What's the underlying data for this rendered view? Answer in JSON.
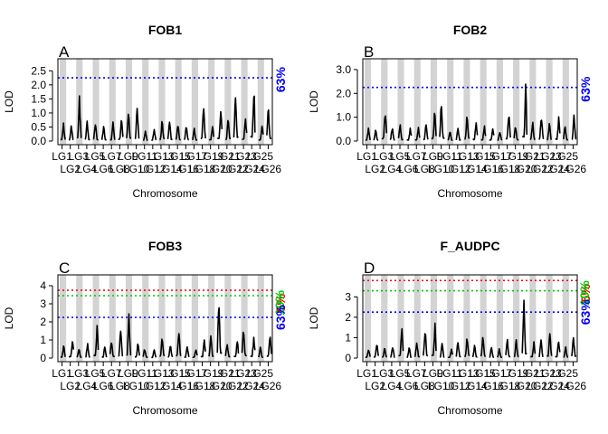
{
  "chart_data": [
    {
      "type": "line",
      "panel_letter": "A",
      "title": "FOB1",
      "xlabel": "Chromosome",
      "ylabel": "LOD",
      "ylim": [
        0,
        2.8
      ],
      "yticks": [
        "0.0",
        "0.5",
        "1.0",
        "1.5",
        "2.0",
        "2.5"
      ],
      "ytick_values": [
        0,
        0.5,
        1,
        1.5,
        2,
        2.5
      ],
      "chromosome_labels_row1": [
        "LG1",
        "LG3",
        "LG5",
        "LG7",
        "LG9",
        "LG11",
        "LG13",
        "LG15",
        "LG17",
        "LG19",
        "LG21",
        "LG23",
        "LG25"
      ],
      "chromosome_labels_row2": [
        "LG2",
        "LG4",
        "LG6",
        "LG8",
        "LG10",
        "LG12",
        "LG14",
        "LG16",
        "LG18",
        "LG20",
        "LG22",
        "LG24",
        "LG26"
      ],
      "thresholds": [
        {
          "label": "63%",
          "value": 2.25,
          "color": "#0000ee"
        }
      ],
      "peaks": [
        0.7,
        0.6,
        1.65,
        0.8,
        0.75,
        0.6,
        0.7,
        0.9,
        1.35,
        1.5,
        0.4,
        0.5,
        0.8,
        0.9,
        0.7,
        0.6,
        0.5,
        1.4,
        0.6,
        1.3,
        0.9,
        1.9,
        1.0,
        2.15,
        0.6,
        1.35
      ]
    },
    {
      "type": "line",
      "panel_letter": "B",
      "title": "FOB2",
      "xlabel": "Chromosome",
      "ylabel": "LOD",
      "ylim": [
        0,
        3.3
      ],
      "yticks": [
        "0.0",
        "1.0",
        "2.0",
        "3.0"
      ],
      "ytick_values": [
        0,
        1,
        2,
        3
      ],
      "chromosome_labels_row1": [
        "LG1",
        "LG3",
        "LG5",
        "LG7",
        "LG9",
        "LG11",
        "LG13",
        "LG15",
        "LG17",
        "LG19",
        "LG21",
        "LG23",
        "LG25"
      ],
      "chromosome_labels_row2": [
        "LG2",
        "LG4",
        "LG6",
        "LG8",
        "LG10",
        "LG12",
        "LG14",
        "LG16",
        "LG18",
        "LG20",
        "LG22",
        "LG24",
        "LG26"
      ],
      "thresholds": [
        {
          "label": "63%",
          "value": 2.25,
          "color": "#0000ee"
        }
      ],
      "peaks": [
        0.6,
        0.5,
        1.55,
        0.7,
        0.8,
        0.6,
        0.65,
        0.9,
        1.4,
        1.85,
        0.5,
        0.6,
        1.2,
        0.9,
        0.7,
        0.6,
        0.5,
        1.4,
        0.8,
        2.7,
        0.9,
        1.3,
        0.9,
        1.1,
        0.7,
        1.25
      ]
    },
    {
      "type": "line",
      "panel_letter": "C",
      "title": "FOB3",
      "xlabel": "Chromosome",
      "ylabel": "LOD",
      "ylim": [
        0,
        4.4
      ],
      "yticks": [
        "0",
        "1",
        "2",
        "3",
        "4"
      ],
      "ytick_values": [
        0,
        1,
        2,
        3,
        4
      ],
      "chromosome_labels_row1": [
        "LG1",
        "LG3",
        "LG5",
        "LG7",
        "LG9",
        "LG11",
        "LG13",
        "LG15",
        "LG17",
        "LG19",
        "LG21",
        "LG23",
        "LG25"
      ],
      "chromosome_labels_row2": [
        "LG2",
        "LG4",
        "LG6",
        "LG8",
        "LG10",
        "LG12",
        "LG14",
        "LG16",
        "LG18",
        "LG20",
        "LG22",
        "LG24",
        "LG26"
      ],
      "thresholds": [
        {
          "label": "5%",
          "value": 3.75,
          "color": "#ee0000"
        },
        {
          "label": "10%",
          "value": 3.45,
          "color": "#00cc00"
        },
        {
          "label": "63%",
          "value": 2.25,
          "color": "#0000ee"
        }
      ],
      "peaks": [
        0.8,
        1.1,
        0.6,
        0.9,
        2.0,
        0.7,
        1.1,
        1.9,
        2.6,
        0.9,
        0.6,
        0.5,
        1.3,
        0.8,
        1.8,
        0.7,
        0.6,
        1.2,
        1.5,
        3.7,
        1.0,
        1.2,
        1.9,
        1.3,
        0.7,
        1.5
      ]
    },
    {
      "type": "line",
      "panel_letter": "D",
      "title": "F_AUDPC",
      "xlabel": "Chromosome",
      "ylabel": "LOD",
      "ylim": [
        0,
        3.9
      ],
      "yticks": [
        "0",
        "1",
        "2",
        "3"
      ],
      "ytick_values": [
        0,
        1,
        2,
        3
      ],
      "chromosome_labels_row1": [
        "LG1",
        "LG3",
        "LG5",
        "LG7",
        "LG9",
        "LG11",
        "LG13",
        "LG15",
        "LG17",
        "LG19",
        "LG21",
        "LG23",
        "LG25"
      ],
      "chromosome_labels_row2": [
        "LG2",
        "LG4",
        "LG6",
        "LG8",
        "LG10",
        "LG12",
        "LG14",
        "LG16",
        "LG18",
        "LG20",
        "LG22",
        "LG24",
        "LG26"
      ],
      "thresholds": [
        {
          "label": "5%",
          "value": 3.8,
          "color": "#ee0000"
        },
        {
          "label": "10%",
          "value": 3.3,
          "color": "#00cc00"
        },
        {
          "label": "63%",
          "value": 2.25,
          "color": "#0000ee"
        }
      ],
      "peaks": [
        0.5,
        0.8,
        0.6,
        0.7,
        1.8,
        0.6,
        0.9,
        1.6,
        1.9,
        0.8,
        0.5,
        1.0,
        1.2,
        0.7,
        1.3,
        0.6,
        0.5,
        1.1,
        1.0,
        3.15,
        0.9,
        1.1,
        1.4,
        1.0,
        0.6,
        1.2
      ]
    }
  ]
}
